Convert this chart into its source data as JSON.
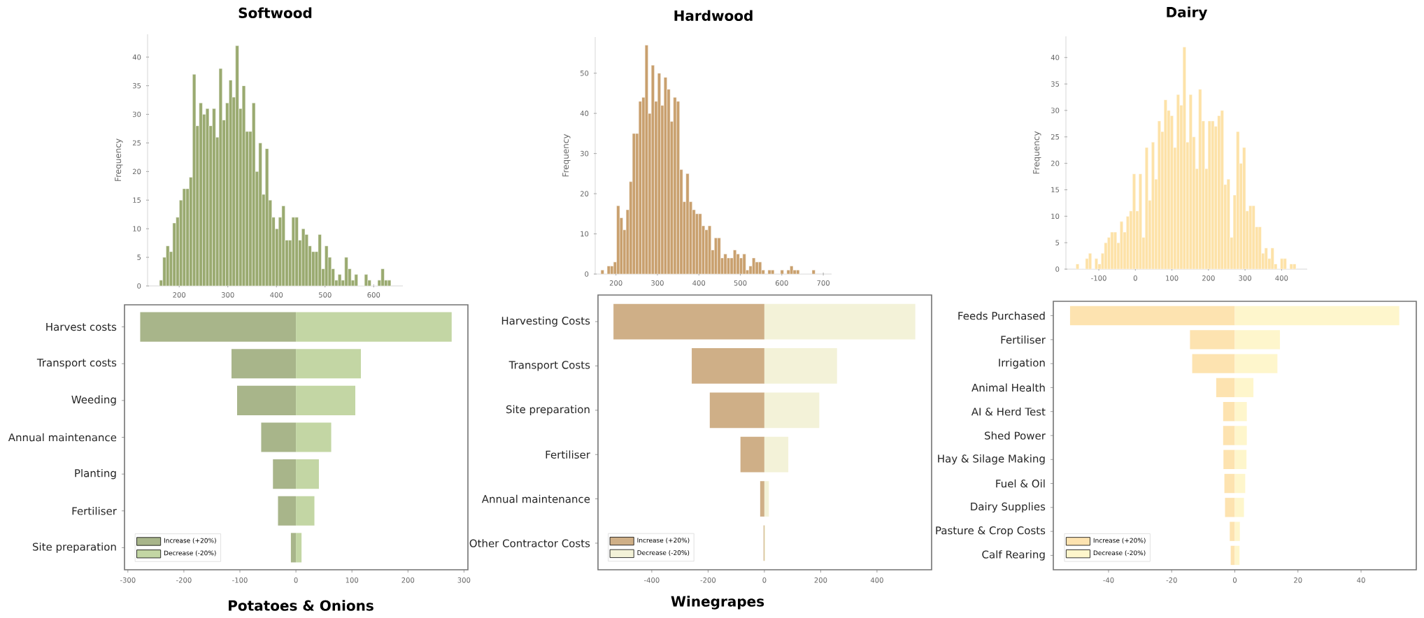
{
  "chart_data": [
    {
      "type": "histogram",
      "title": "Softwood",
      "ylabel": "Frequency",
      "color": "#9aaa70",
      "bins": [
        159.4,
        166.2,
        173.0,
        179.8,
        186.6,
        193.4,
        200.2,
        207.0,
        213.8,
        220.6,
        227.4,
        234.2,
        241.0,
        247.8,
        254.6,
        261.4,
        268.2,
        275.0,
        281.8,
        288.6,
        295.4,
        302.2,
        309.0,
        315.8,
        322.6,
        329.4,
        336.2,
        343.0,
        349.8,
        356.6,
        363.4,
        370.2,
        377.0,
        383.8,
        390.6,
        397.4,
        404.2,
        411.0,
        417.8,
        424.6,
        431.4,
        438.2,
        445.0,
        451.8,
        458.6,
        465.4,
        472.2,
        479.0,
        485.8,
        492.6,
        499.4,
        506.2,
        513.0,
        519.8,
        526.6,
        533.4,
        540.2,
        547.0,
        553.8,
        560.6,
        567.4,
        574.2,
        581.0,
        587.8,
        594.6,
        601.4,
        608.2,
        615.0,
        621.8,
        628.6,
        635.4
      ],
      "values": [
        1,
        5,
        7,
        6,
        11,
        12,
        15,
        17,
        17,
        19,
        37,
        28,
        32,
        30,
        31,
        28,
        31,
        26,
        38,
        29,
        32,
        36,
        33,
        42,
        31,
        35,
        27,
        27,
        32,
        20,
        25,
        16,
        24,
        15,
        12,
        10,
        12,
        14,
        8,
        8,
        12,
        12,
        8,
        10,
        9,
        7,
        6,
        6,
        9,
        3,
        7,
        5,
        3,
        1,
        2,
        1,
        5,
        3,
        1,
        2,
        0,
        0,
        2,
        1,
        0,
        0,
        1,
        3,
        1,
        1
      ],
      "xlim": [
        135,
        660
      ],
      "ylim": [
        0,
        44
      ],
      "xticks": [
        200,
        300,
        400,
        500,
        600
      ],
      "yticks": [
        0,
        5,
        10,
        15,
        20,
        25,
        30,
        35,
        40
      ]
    },
    {
      "type": "histogram",
      "title": "Hardwood",
      "ylabel": "Frequency",
      "color": "#c9a06e",
      "bins": [
        163.6,
        171.2,
        178.8,
        186.4,
        194.0,
        201.6,
        209.2,
        216.8,
        224.4,
        232.0,
        239.6,
        247.2,
        254.8,
        262.4,
        270.0,
        277.6,
        285.2,
        292.8,
        300.4,
        308.0,
        315.6,
        323.2,
        330.8,
        338.4,
        346.0,
        353.6,
        361.2,
        368.8,
        376.4,
        384.0,
        391.6,
        399.2,
        406.8,
        414.4,
        422.0,
        429.6,
        437.2,
        444.8,
        452.4,
        460.0,
        467.6,
        475.2,
        482.8,
        490.4,
        498.0,
        505.6,
        513.2,
        520.8,
        528.4,
        536.0,
        543.6,
        551.2,
        558.8,
        566.4,
        574.0,
        581.6,
        589.2,
        596.8,
        604.4,
        612.0,
        619.6,
        627.2,
        634.8,
        642.4,
        650.0,
        657.6,
        665.2,
        672.8,
        680.4
      ],
      "values": [
        1,
        0,
        2,
        2,
        3,
        17,
        14,
        11,
        16,
        23,
        35,
        35,
        43,
        44,
        57,
        40,
        52,
        43,
        50,
        42,
        49,
        46,
        38,
        44,
        43,
        26,
        18,
        25,
        18,
        16,
        15,
        15,
        12,
        11,
        12,
        6,
        9,
        9,
        4,
        5,
        4,
        4,
        6,
        5,
        4,
        5,
        1,
        2,
        4,
        3,
        3,
        1,
        0,
        1,
        1,
        0,
        0,
        1,
        0,
        1,
        2,
        1,
        1,
        0,
        0,
        0,
        0,
        1
      ],
      "xlim": [
        150,
        720
      ],
      "ylim": [
        0,
        59
      ],
      "xticks": [
        200,
        300,
        400,
        500,
        600,
        700
      ],
      "yticks": [
        0,
        10,
        20,
        30,
        40,
        50
      ]
    },
    {
      "type": "histogram",
      "title": "Dairy",
      "ylabel": "Frequency",
      "color": "#fde2a8",
      "bins": [
        -162.6,
        -154.0,
        -145.4,
        -136.8,
        -128.2,
        -119.6,
        -111.0,
        -102.4,
        -93.8,
        -85.2,
        -76.6,
        -68.0,
        -59.4,
        -50.8,
        -42.2,
        -33.6,
        -25.0,
        -16.4,
        -7.8,
        0.8,
        9.4,
        18.0,
        26.6,
        35.2,
        43.8,
        52.4,
        61.0,
        69.6,
        78.2,
        86.8,
        95.4,
        104.0,
        112.6,
        121.2,
        129.8,
        138.4,
        147.0,
        155.6,
        164.2,
        172.8,
        181.4,
        190.0,
        198.6,
        207.2,
        215.8,
        224.4,
        233.0,
        241.6,
        250.2,
        258.8,
        267.4,
        276.0,
        284.6,
        293.2,
        301.8,
        310.4,
        319.0,
        327.6,
        336.2,
        344.8,
        353.4,
        362.0,
        370.6,
        379.2,
        387.8,
        396.4,
        405.0,
        413.6,
        422.2,
        430.8,
        439.4
      ],
      "values": [
        1,
        0,
        0,
        2,
        3,
        0,
        2,
        1,
        3,
        5,
        6,
        7,
        7,
        5,
        9,
        7,
        10,
        11,
        18,
        11,
        18,
        6,
        23,
        13,
        24,
        17,
        28,
        26,
        32,
        30,
        29,
        23,
        33,
        31,
        42,
        24,
        33,
        25,
        19,
        34,
        28,
        19,
        28,
        28,
        27,
        29,
        30,
        16,
        17,
        6,
        14,
        26,
        20,
        23,
        11,
        12,
        12,
        8,
        8,
        3,
        4,
        2,
        4,
        1,
        0,
        2,
        2,
        0,
        1,
        1
      ],
      "xlim": [
        -190,
        470
      ],
      "ylim": [
        0,
        44
      ],
      "xticks": [
        -100,
        0,
        100,
        200,
        300,
        400
      ],
      "yticks": [
        0,
        5,
        10,
        15,
        20,
        25,
        30,
        35,
        40
      ]
    },
    {
      "type": "bar",
      "orientation": "horizontal",
      "stacked": true,
      "legend": "bottom left",
      "annotations": [
        "Potatoes & Onions"
      ],
      "categories": [
        "Harvest costs",
        "Transport costs",
        "Weeding",
        "Annual maintenance",
        "Planting",
        "Fertiliser",
        "Site preparation"
      ],
      "series": [
        {
          "name": "Increase (+20%)",
          "color": "#a8b58a",
          "values": [
            -278,
            -115,
            -105,
            -62,
            -41,
            -32,
            -9
          ]
        },
        {
          "name": "Decrease (-20%)",
          "color": "#c3d6a4",
          "values": [
            278,
            116,
            106,
            63,
            41,
            33,
            10
          ]
        }
      ],
      "xlim": [
        -306,
        307
      ],
      "xticks": [
        -300,
        -200,
        -100,
        0,
        100,
        200,
        300
      ]
    },
    {
      "type": "bar",
      "orientation": "horizontal",
      "stacked": true,
      "legend": "bottom left",
      "annotations": [
        "Winegrapes"
      ],
      "categories": [
        "Harvesting Costs",
        "Transport Costs",
        "Site preparation",
        "Fertiliser",
        "Annual maintenance",
        "Other Contractor Costs"
      ],
      "series": [
        {
          "name": "Increase (+20%)",
          "color": "#cfaf87",
          "values": [
            -536,
            -258,
            -194,
            -85,
            -15,
            -3
          ]
        },
        {
          "name": "Decrease (-20%)",
          "color": "#f3f2d8",
          "values": [
            536,
            258,
            195,
            85,
            16,
            3
          ]
        }
      ],
      "xlim": [
        -591,
        594
      ],
      "xticks": [
        -400,
        -200,
        0,
        200,
        400
      ]
    },
    {
      "type": "bar",
      "orientation": "horizontal",
      "stacked": true,
      "legend": "bottom left",
      "categories": [
        "Feeds Purchased",
        "Fertiliser",
        "Irrigation",
        "Animal Health",
        "AI & Herd Test",
        "Shed Power",
        "Hay & Silage Making",
        "Fuel & Oil",
        "Dairy Supplies",
        "Pasture & Crop Costs",
        "Calf Rearing"
      ],
      "series": [
        {
          "name": "Increase (+20%)",
          "color": "#fde3b0",
          "values": [
            -52.2,
            -14.2,
            -13.5,
            -5.9,
            -3.7,
            -3.7,
            -3.6,
            -3.3,
            -3.1,
            -1.6,
            -1.3
          ]
        },
        {
          "name": "Decrease (-20%)",
          "color": "#fef6cc",
          "values": [
            52.1,
            14.3,
            13.5,
            5.9,
            3.8,
            3.8,
            3.7,
            3.3,
            2.9,
            1.6,
            1.5
          ]
        }
      ],
      "xlim": [
        -57.5,
        57.5
      ],
      "xticks": [
        -40,
        -20,
        0,
        20,
        40
      ]
    }
  ]
}
